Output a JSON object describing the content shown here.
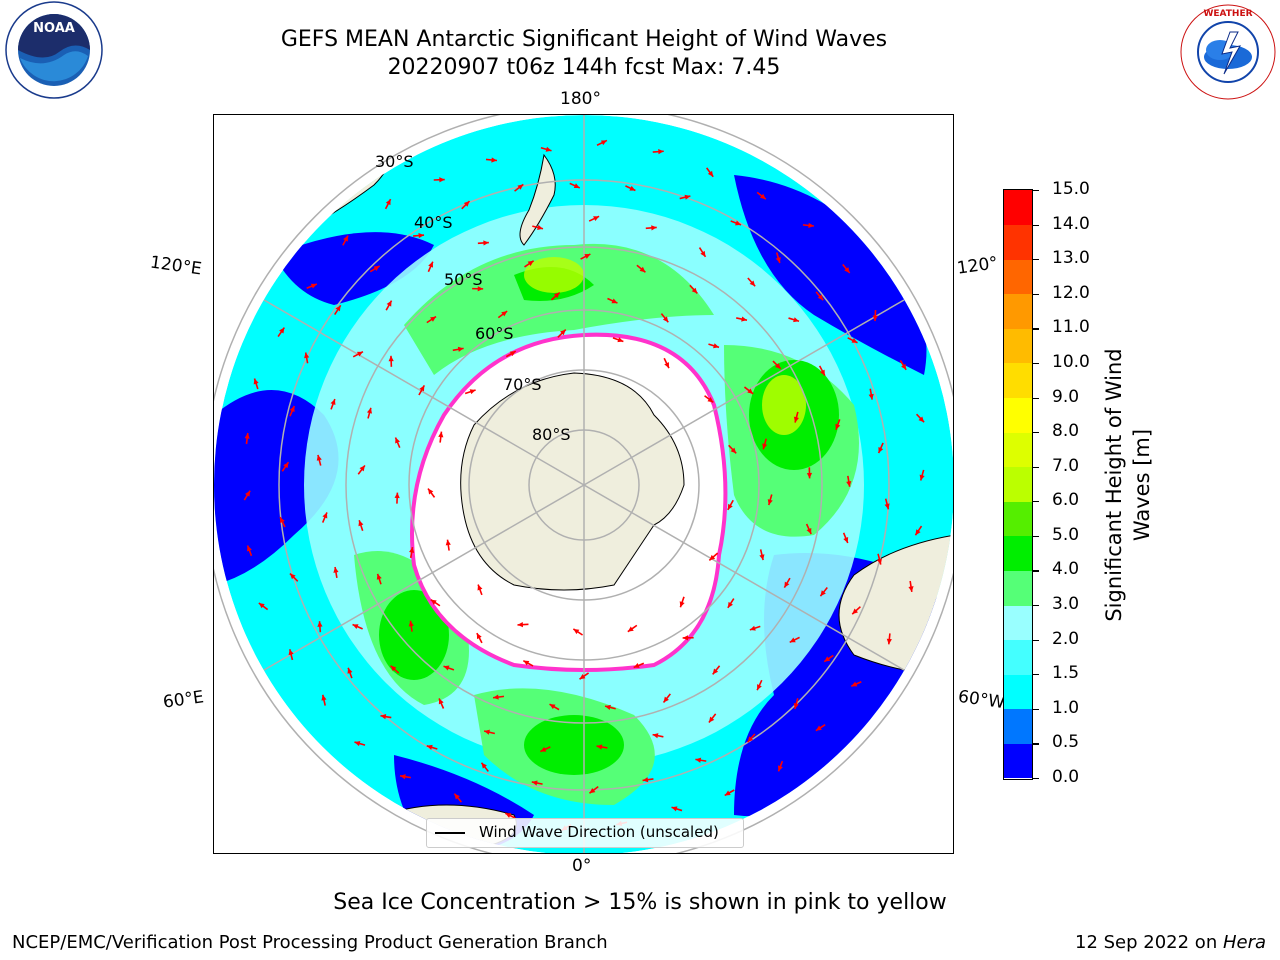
{
  "title": {
    "line1": "GEFS MEAN Antarctic Significant Height of Wind Waves",
    "line2": "20220907 t06z 144h fcst   Max: 7.45"
  },
  "logos": {
    "left": {
      "name": "noaa-logo",
      "text": "NOAA",
      "ring_text": "NATIONAL OCEANIC AND ATMOSPHERIC ADMINISTRATION · U.S. DEPARTMENT OF COMMERCE"
    },
    "right": {
      "name": "nws-logo",
      "ring_text": "NATIONAL WEATHER SERVICE"
    }
  },
  "map": {
    "projection": "south-polar-stereographic",
    "lon_labels": {
      "top": "180°",
      "bottom": "0°",
      "left_upper": "120°E",
      "left_lower": "60°E",
      "right_upper": "120°",
      "right_lower": "60°W"
    },
    "lat_labels": [
      "30°S",
      "40°S",
      "50°S",
      "60°S",
      "70°S",
      "80°S"
    ],
    "legend": "Wind Wave Direction (unscaled)",
    "colors": {
      "land": "#efeedd",
      "grid": "#b0b0b0",
      "arrow": "#ff0000",
      "ice": "#ff33cc"
    }
  },
  "colorbar": {
    "title": "Significant Height of Wind Waves [m]",
    "ticks": [
      "0.0",
      "0.5",
      "1.0",
      "1.5",
      "2.0",
      "3.0",
      "4.0",
      "5.0",
      "6.0",
      "7.0",
      "8.0",
      "9.0",
      "10.0",
      "11.0",
      "12.0",
      "13.0",
      "14.0",
      "15.0"
    ],
    "colors": [
      "#0000ff",
      "#0077ff",
      "#00ffff",
      "#44ffff",
      "#99ffff",
      "#55ff77",
      "#00ee00",
      "#55ee00",
      "#bbff00",
      "#ddff00",
      "#ffff00",
      "#ffdd00",
      "#ffbb00",
      "#ff9900",
      "#ff6600",
      "#ff3300",
      "#ff0000"
    ]
  },
  "subtitle": "Sea Ice Concentration > 15% is shown in pink to yellow",
  "footer": {
    "left": "NCEP/EMC/Verification Post Processing Product Generation Branch",
    "right_prefix": "12 Sep 2022 on ",
    "right_host": "Hera"
  }
}
